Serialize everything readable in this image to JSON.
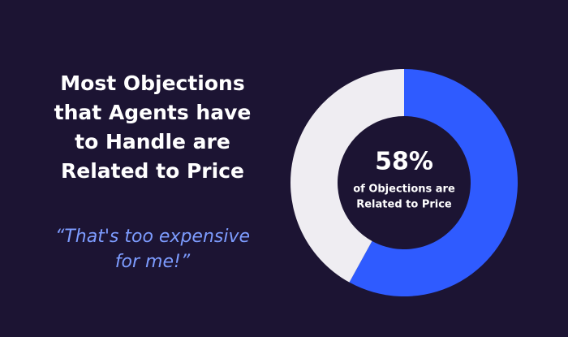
{
  "chart_data": {
    "type": "donut",
    "title_lines": [
      "Most Objections",
      "that Agents have",
      "to Handle are",
      "Related to Price"
    ],
    "quote_lines": [
      "“That's too expensive",
      "for me!”"
    ],
    "values": [
      58,
      42
    ],
    "value_labels": [
      "58%",
      null
    ],
    "colors": [
      "#2f5bff",
      "#efedf2"
    ],
    "center_caption_lines": [
      "of Objections are",
      "Related to Price"
    ]
  }
}
